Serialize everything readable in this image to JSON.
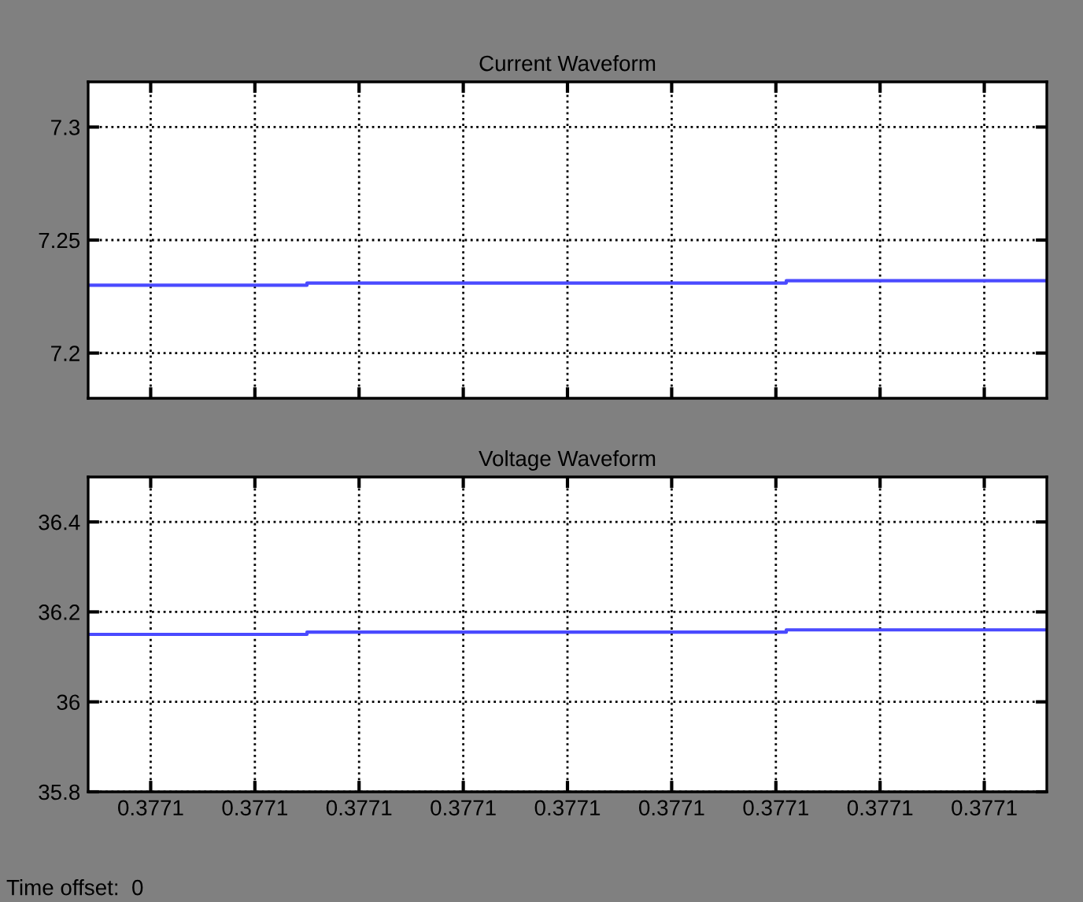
{
  "chart_data": [
    {
      "type": "step",
      "title": "Current Waveform",
      "categories": [
        null,
        null,
        null,
        null,
        null,
        null,
        null,
        null,
        null,
        null,
        null,
        null,
        null,
        null,
        null,
        null,
        null,
        null,
        null,
        null,
        null,
        null,
        null,
        null,
        null,
        null,
        null,
        null,
        null,
        null,
        null,
        null,
        null,
        null,
        null,
        null,
        null,
        null,
        null,
        null,
        null,
        null,
        null,
        null,
        null,
        null,
        null
      ],
      "series": [
        {
          "color": "#4a4aff",
          "values": [
            7.23,
            7.23,
            7.23,
            7.23,
            7.23,
            7.23,
            7.23,
            7.23,
            7.23,
            7.23,
            7.23,
            7.231,
            7.231,
            7.231,
            7.231,
            7.231,
            7.231,
            7.231,
            7.231,
            7.231,
            7.231,
            7.231,
            7.231,
            7.231,
            7.231,
            7.231,
            7.231,
            7.231,
            7.231,
            7.231,
            7.231,
            7.231,
            7.231,
            7.231,
            7.232,
            7.232,
            7.232,
            7.232,
            7.232,
            7.232,
            7.232,
            7.232,
            7.232,
            7.232,
            7.232,
            7.232,
            7.232
          ]
        }
      ],
      "ylim": [
        7.18,
        7.32
      ],
      "yticks": [
        7.2,
        7.25,
        7.3
      ],
      "grid": true,
      "line_style": "solid",
      "tick_labels": "y"
    },
    {
      "type": "step",
      "title": "Voltage Waveform",
      "categories": [
        null,
        null,
        null,
        "0.3771",
        null,
        null,
        null,
        null,
        "0.3771",
        null,
        null,
        null,
        null,
        "0.3771",
        null,
        null,
        null,
        null,
        "0.3771",
        null,
        null,
        null,
        null,
        "0.3771",
        null,
        null,
        null,
        null,
        "0.3771",
        null,
        null,
        null,
        null,
        "0.3771",
        null,
        null,
        null,
        null,
        "0.3771",
        null,
        null,
        null,
        null,
        "0.3771",
        null,
        null,
        null
      ],
      "series": [
        {
          "color": "#4a4aff",
          "values": [
            36.15,
            36.15,
            36.15,
            36.15,
            36.15,
            36.15,
            36.15,
            36.15,
            36.15,
            36.15,
            36.15,
            36.155,
            36.155,
            36.155,
            36.155,
            36.155,
            36.155,
            36.155,
            36.155,
            36.155,
            36.155,
            36.155,
            36.155,
            36.155,
            36.155,
            36.155,
            36.155,
            36.155,
            36.155,
            36.155,
            36.155,
            36.155,
            36.155,
            36.155,
            36.16,
            36.16,
            36.16,
            36.16,
            36.16,
            36.16,
            36.16,
            36.16,
            36.16,
            36.16,
            36.16,
            36.16,
            36.16
          ]
        }
      ],
      "ylim": [
        35.8,
        36.5
      ],
      "yticks": [
        35.8,
        36,
        36.2,
        36.4
      ],
      "grid": true,
      "line_style": "solid",
      "annotations": [
        "Time offset:  0"
      ]
    }
  ]
}
